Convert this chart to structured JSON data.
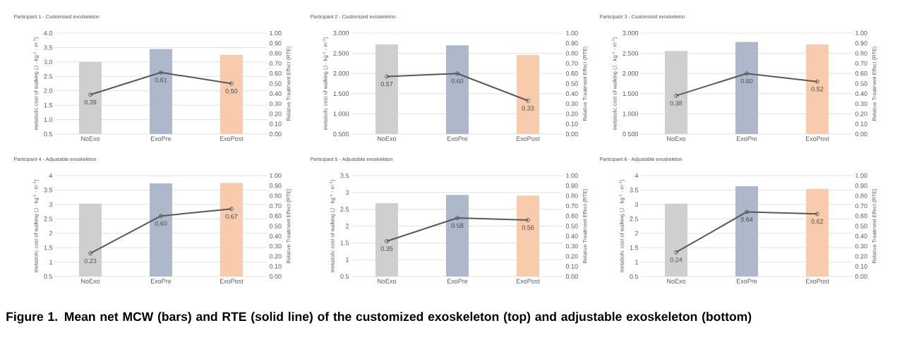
{
  "chart_data": [
    {
      "type": "bar",
      "title": "Participant 1 - Customised exoskeleton",
      "categories": [
        "NoExo",
        "ExoPre",
        "ExoPost"
      ],
      "ylabel": "metabolic cost of walking (J · kg$^{-1}$ · m$^{-1}$)",
      "y2label": "Relative Treatment Effect (RTE)",
      "grid": "y",
      "ylim": [
        0.5,
        4.0
      ],
      "yticks": [
        {
          "value": 0.5,
          "label": "0.5"
        },
        {
          "value": 1,
          "label": "1.0"
        },
        {
          "value": 1.5,
          "label": "1.5"
        },
        {
          "value": 2,
          "label": "2.0"
        },
        {
          "value": 2.5,
          "label": "2.5"
        },
        {
          "value": 3,
          "label": "3.0"
        },
        {
          "value": 3.5,
          "label": "3.5"
        },
        {
          "value": 4,
          "label": "4.0"
        }
      ],
      "y2lim": [
        0,
        1
      ],
      "y2ticks": [
        {
          "value": 0,
          "label": "0.00"
        },
        {
          "value": 0.1,
          "label": "0.10"
        },
        {
          "value": 0.2,
          "label": "0.20"
        },
        {
          "value": 0.3,
          "label": "0.30"
        },
        {
          "value": 0.4,
          "label": "0.40"
        },
        {
          "value": 0.5,
          "label": "0.50"
        },
        {
          "value": 0.6,
          "label": "0.60"
        },
        {
          "value": 0.7,
          "label": "0.70"
        },
        {
          "value": 0.8,
          "label": "0.80"
        },
        {
          "value": 0.9,
          "label": "0.90"
        },
        {
          "value": 1,
          "label": "1.00"
        }
      ],
      "series": [
        {
          "type": "bar",
          "colors": [
            "#d0cece",
            "#adb9ca",
            "#f8cbad"
          ],
          "values": [
            3.0,
            3.45,
            3.25
          ]
        },
        {
          "type": "line",
          "axis": "y2",
          "color": "#595959",
          "marker": "circle",
          "line_style": "solid",
          "values": [
            0.39,
            0.61,
            0.5
          ],
          "value_labels": [
            "0.39",
            "0.61",
            "0.50"
          ]
        }
      ]
    },
    {
      "type": "bar",
      "title": "Participant 2 - Customized exoskeleton",
      "categories": [
        "NoExo",
        "ExoPre",
        "ExoPost"
      ],
      "ylabel": "metabolic cost of walking (J · kg$^{-1}$ · m$^{-1}$)",
      "y2label": "Relative Treatment Effect (RTE)",
      "grid": "y",
      "ylim": [
        0.5,
        3.0
      ],
      "yticks": [
        {
          "value": 0.5,
          "label": "0.500"
        },
        {
          "value": 1,
          "label": "1.000"
        },
        {
          "value": 1.5,
          "label": "1.500"
        },
        {
          "value": 2,
          "label": "2.000"
        },
        {
          "value": 2.5,
          "label": "2.500"
        },
        {
          "value": 3,
          "label": "3.000"
        }
      ],
      "y2lim": [
        0,
        1
      ],
      "y2ticks": [
        {
          "value": 0,
          "label": "0.00"
        },
        {
          "value": 0.1,
          "label": "0.10"
        },
        {
          "value": 0.2,
          "label": "0.20"
        },
        {
          "value": 0.3,
          "label": "0.30"
        },
        {
          "value": 0.4,
          "label": "0.40"
        },
        {
          "value": 0.5,
          "label": "0.50"
        },
        {
          "value": 0.6,
          "label": "0.60"
        },
        {
          "value": 0.7,
          "label": "0.70"
        },
        {
          "value": 0.8,
          "label": "0.80"
        },
        {
          "value": 0.9,
          "label": "0.90"
        },
        {
          "value": 1,
          "label": "1.00"
        }
      ],
      "series": [
        {
          "type": "bar",
          "colors": [
            "#d0cece",
            "#adb9ca",
            "#f8cbad"
          ],
          "values": [
            2.72,
            2.7,
            2.46
          ]
        },
        {
          "type": "line",
          "axis": "y2",
          "color": "#595959",
          "marker": "circle",
          "line_style": "solid",
          "values": [
            0.57,
            0.6,
            0.33
          ],
          "value_labels": [
            "0.57",
            "0.60",
            "0.33"
          ]
        }
      ]
    },
    {
      "type": "bar",
      "title": "Participant 3 - Customized exoskeleton",
      "categories": [
        "NoExo",
        "ExoPre",
        "ExoPost"
      ],
      "ylabel": "metabolic cost of walking (J · kg$^{-1}$ · m$^{-1}$)",
      "y2label": "Relative Treatment Effect (RTE)",
      "grid": "y",
      "ylim": [
        0.5,
        3.0
      ],
      "yticks": [
        {
          "value": 0.5,
          "label": "0.500"
        },
        {
          "value": 1,
          "label": "1.000"
        },
        {
          "value": 1.5,
          "label": "1.500"
        },
        {
          "value": 2,
          "label": "2.000"
        },
        {
          "value": 2.5,
          "label": "2.500"
        },
        {
          "value": 3,
          "label": "3.000"
        }
      ],
      "y2lim": [
        0,
        1
      ],
      "y2ticks": [
        {
          "value": 0,
          "label": "0.00"
        },
        {
          "value": 0.1,
          "label": "0.10"
        },
        {
          "value": 0.2,
          "label": "0.20"
        },
        {
          "value": 0.3,
          "label": "0.30"
        },
        {
          "value": 0.4,
          "label": "0.40"
        },
        {
          "value": 0.5,
          "label": "0.50"
        },
        {
          "value": 0.6,
          "label": "0.60"
        },
        {
          "value": 0.7,
          "label": "0.70"
        },
        {
          "value": 0.8,
          "label": "0.80"
        },
        {
          "value": 0.9,
          "label": "0.90"
        },
        {
          "value": 1,
          "label": "1.00"
        }
      ],
      "series": [
        {
          "type": "bar",
          "colors": [
            "#d0cece",
            "#adb9ca",
            "#f8cbad"
          ],
          "values": [
            2.56,
            2.78,
            2.72
          ]
        },
        {
          "type": "line",
          "axis": "y2",
          "color": "#595959",
          "marker": "circle",
          "line_style": "solid",
          "values": [
            0.38,
            0.6,
            0.52
          ],
          "value_labels": [
            "0.38",
            "0.60",
            "0.52"
          ]
        }
      ]
    },
    {
      "type": "bar",
      "title": "Participant 4 - Adjustable exoskeleton",
      "categories": [
        "NoExo",
        "ExoPre",
        "ExoPost"
      ],
      "ylabel": "metabolic cost of walking (J · kg$^{-1}$ · m$^{-1}$)",
      "y2label": "Relative Treatment Effect (RTE)",
      "grid": "y",
      "ylim": [
        0.5,
        4
      ],
      "yticks": [
        0.5,
        1,
        1.5,
        2,
        2.5,
        3,
        3.5,
        4
      ],
      "y2lim": [
        0,
        1
      ],
      "y2ticks": [
        {
          "value": 0,
          "label": "0.00"
        },
        {
          "value": 0.1,
          "label": "0.10"
        },
        {
          "value": 0.2,
          "label": "0.20"
        },
        {
          "value": 0.3,
          "label": "0.30"
        },
        {
          "value": 0.4,
          "label": "0.40"
        },
        {
          "value": 0.5,
          "label": "0.50"
        },
        {
          "value": 0.6,
          "label": "0.60"
        },
        {
          "value": 0.7,
          "label": "0.70"
        },
        {
          "value": 0.8,
          "label": "0.80"
        },
        {
          "value": 0.9,
          "label": "0.90"
        },
        {
          "value": 1,
          "label": "1.00"
        }
      ],
      "series": [
        {
          "type": "bar",
          "colors": [
            "#d0cece",
            "#adb9ca",
            "#f8cbad"
          ],
          "values": [
            3.03,
            3.73,
            3.75
          ]
        },
        {
          "type": "line",
          "axis": "y2",
          "color": "#595959",
          "marker": "circle",
          "line_style": "solid",
          "values": [
            0.23,
            0.6,
            0.67
          ],
          "value_labels": [
            "0.23",
            "0.60",
            "0.67"
          ]
        }
      ]
    },
    {
      "type": "bar",
      "title": "Participant 5 - Adjustable exoskeleton",
      "categories": [
        "NoExo",
        "ExoPre",
        "ExoPost"
      ],
      "ylabel": "metabolic cost of walking (J · kg$^{-1}$ · m$^{-1}$)",
      "y2label": "Relative Treatment Effect (RTE)",
      "grid": "y",
      "ylim": [
        0.5,
        3.5
      ],
      "yticks": [
        0.5,
        1,
        1.5,
        2,
        2.5,
        3,
        3.5
      ],
      "y2lim": [
        0,
        1
      ],
      "y2ticks": [
        {
          "value": 0,
          "label": "0.00"
        },
        {
          "value": 0.1,
          "label": "0.10"
        },
        {
          "value": 0.2,
          "label": "0.20"
        },
        {
          "value": 0.3,
          "label": "0.30"
        },
        {
          "value": 0.4,
          "label": "0.40"
        },
        {
          "value": 0.5,
          "label": "0.50"
        },
        {
          "value": 0.6,
          "label": "0.60"
        },
        {
          "value": 0.7,
          "label": "0.70"
        },
        {
          "value": 0.8,
          "label": "0.80"
        },
        {
          "value": 0.9,
          "label": "0.90"
        },
        {
          "value": 1,
          "label": "1.00"
        }
      ],
      "series": [
        {
          "type": "bar",
          "colors": [
            "#d0cece",
            "#adb9ca",
            "#f8cbad"
          ],
          "values": [
            2.68,
            2.93,
            2.91
          ]
        },
        {
          "type": "line",
          "axis": "y2",
          "color": "#595959",
          "marker": "circle",
          "line_style": "solid",
          "values": [
            0.35,
            0.58,
            0.56
          ],
          "value_labels": [
            "0.35",
            "0.58",
            "0.56"
          ]
        }
      ]
    },
    {
      "type": "bar",
      "title": "Participant 6 - Adjustable exoskeleton",
      "categories": [
        "NoExo",
        "ExoPre",
        "ExoPost"
      ],
      "ylabel": "metabolic cost of walking (J · kg$^{-1}$ · m$^{-1}$)",
      "y2label": "Relative Treatment Effect (RTE)",
      "grid": "y",
      "ylim": [
        0.5,
        4
      ],
      "yticks": [
        0.5,
        1,
        1.5,
        2,
        2.5,
        3,
        3.5,
        4
      ],
      "y2lim": [
        0,
        1
      ],
      "y2ticks": [
        {
          "value": 0,
          "label": "0.00"
        },
        {
          "value": 0.1,
          "label": "0.10"
        },
        {
          "value": 0.2,
          "label": "0.20"
        },
        {
          "value": 0.3,
          "label": "0.30"
        },
        {
          "value": 0.4,
          "label": "0.40"
        },
        {
          "value": 0.5,
          "label": "0.50"
        },
        {
          "value": 0.6,
          "label": "0.60"
        },
        {
          "value": 0.7,
          "label": "0.70"
        },
        {
          "value": 0.8,
          "label": "0.80"
        },
        {
          "value": 0.9,
          "label": "0.90"
        },
        {
          "value": 1,
          "label": "1.00"
        }
      ],
      "series": [
        {
          "type": "bar",
          "colors": [
            "#d0cece",
            "#adb9ca",
            "#f8cbad"
          ],
          "values": [
            3.03,
            3.63,
            3.54
          ]
        },
        {
          "type": "line",
          "axis": "y2",
          "color": "#595959",
          "marker": "circle",
          "line_style": "solid",
          "values": [
            0.24,
            0.64,
            0.62
          ],
          "value_labels": [
            "0.24",
            "0.64",
            "0.62"
          ]
        }
      ]
    },
    {
      "type": "other",
      "title": "Figure 1. Mean net MCW (bars) and RTE (solid line) of the customized exoskeleton (top) and adjustable exoskeleton (bottom)"
    }
  ]
}
